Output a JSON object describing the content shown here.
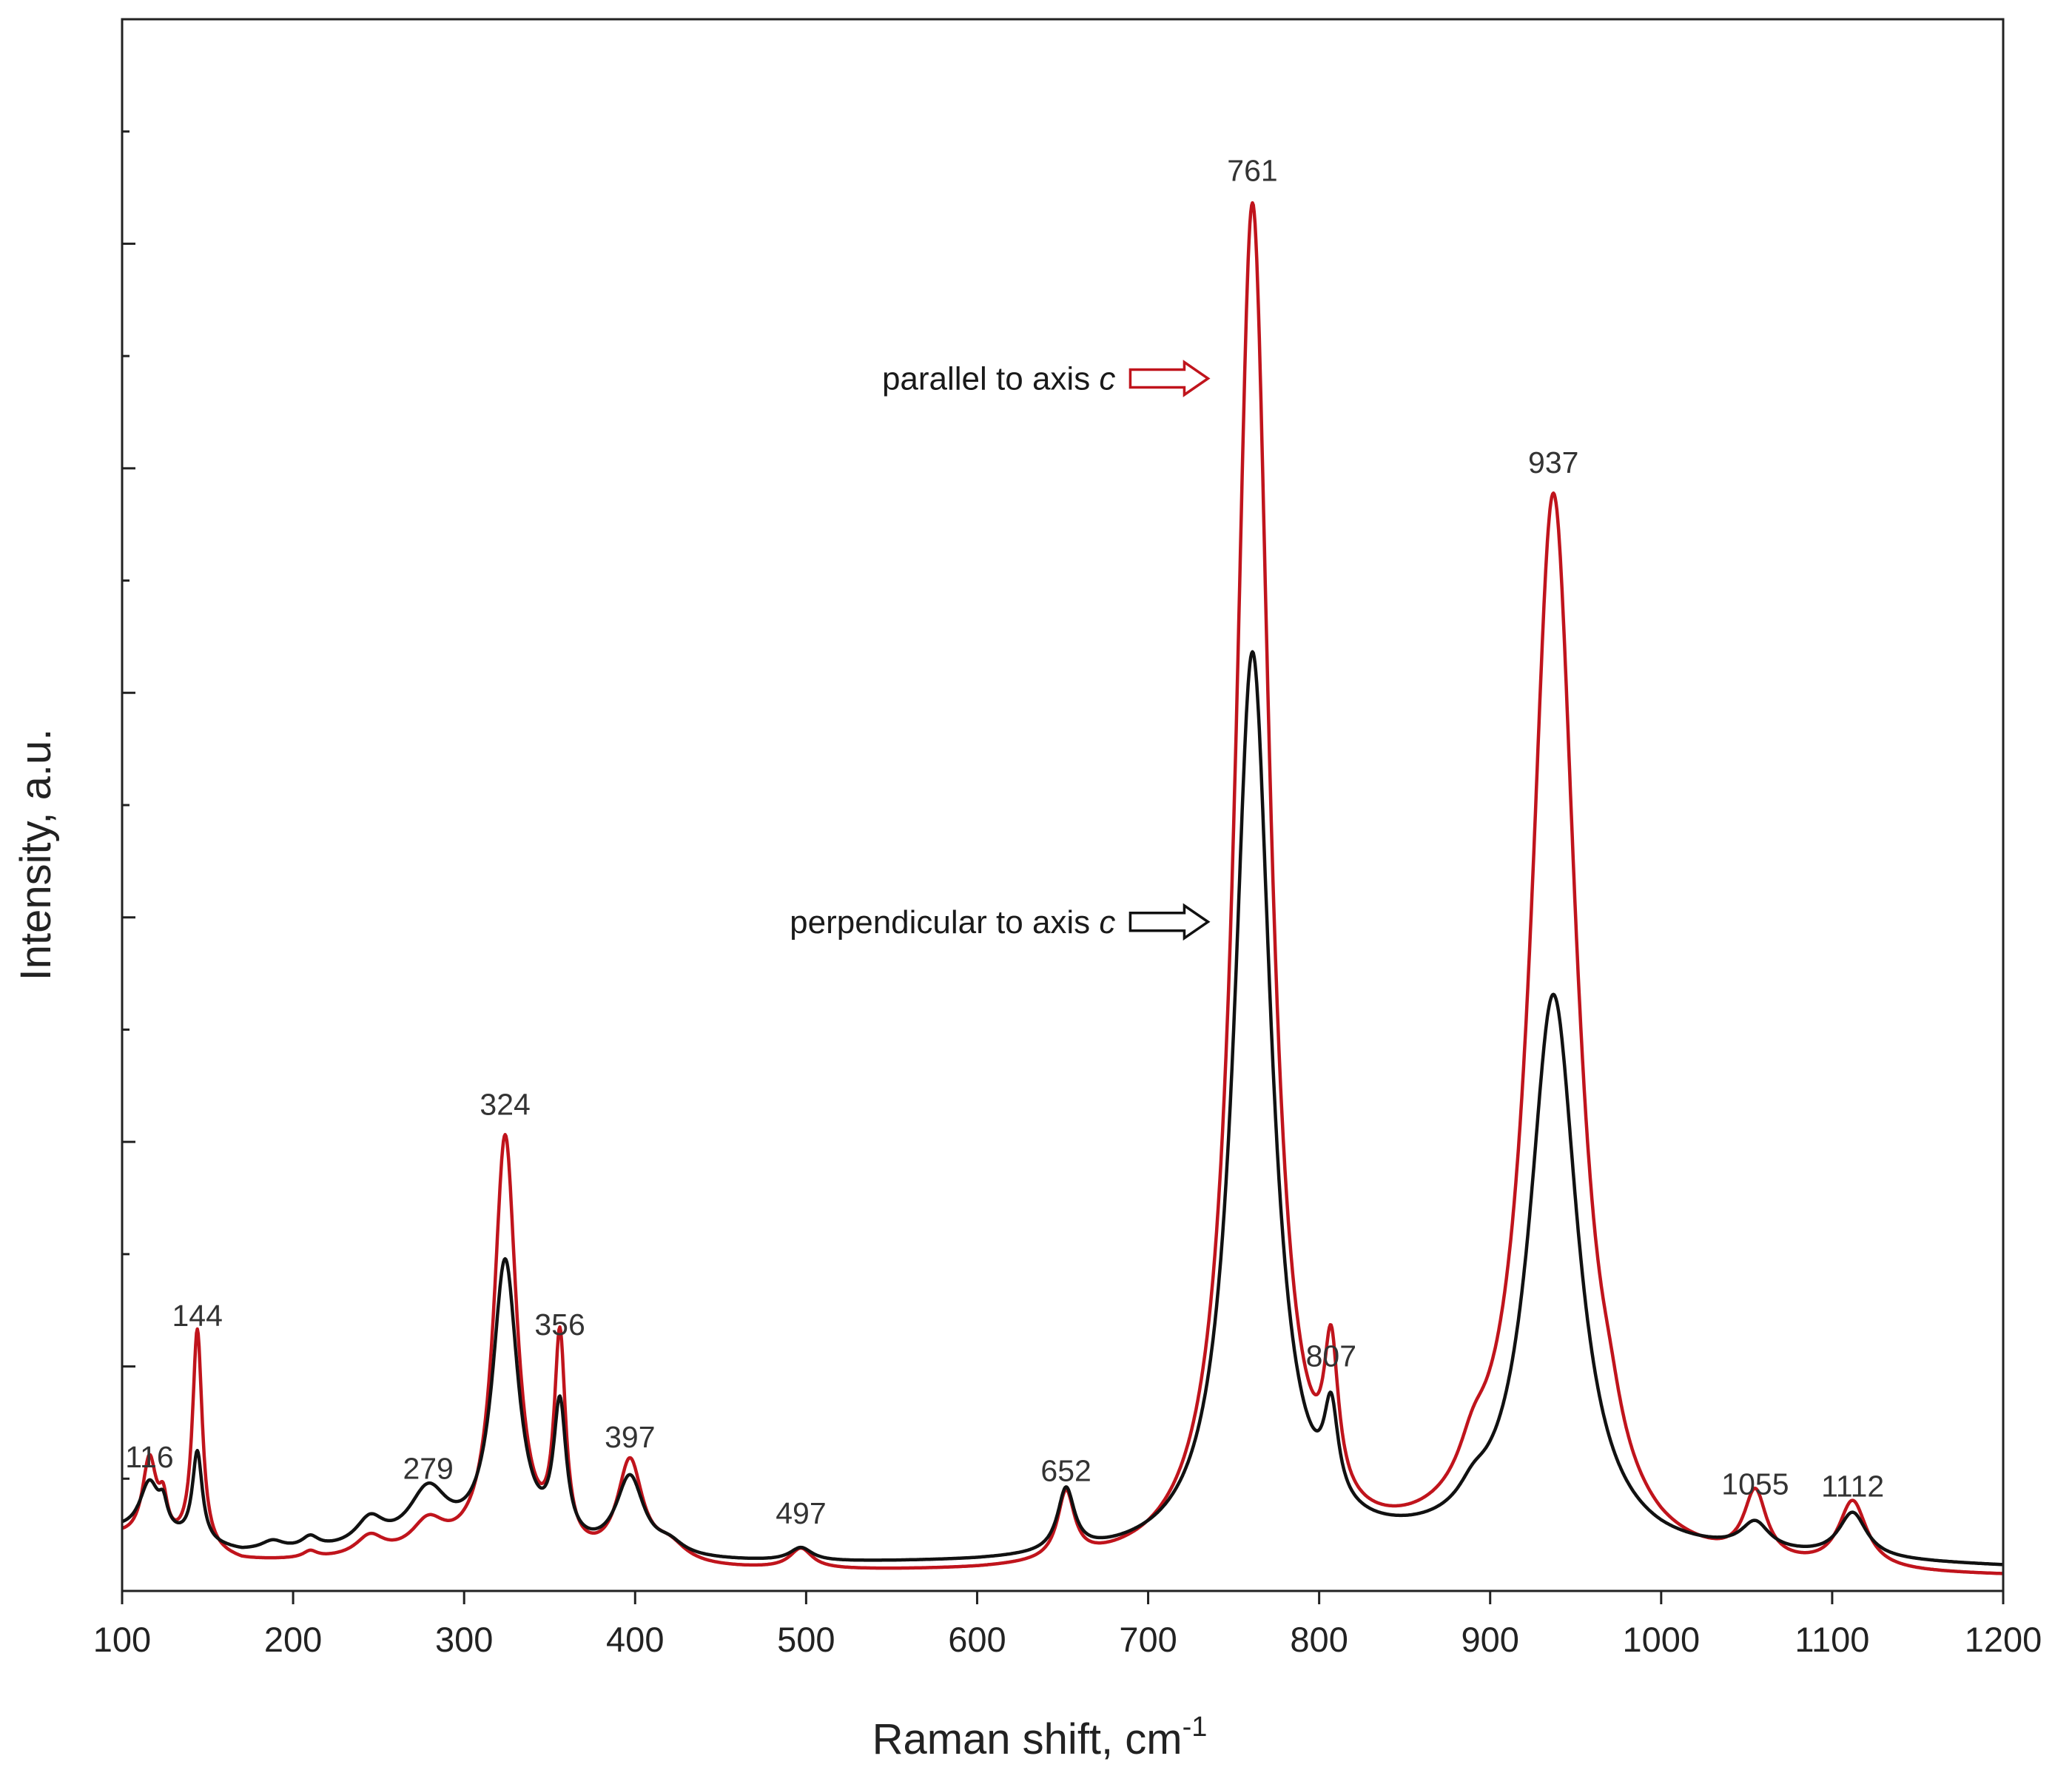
{
  "chart_data": {
    "type": "line",
    "title": "",
    "xlabel": "Raman shift, cm",
    "xlabel_superscript": "-1",
    "ylabel": "Intensity, a.u.",
    "xlim": [
      100,
      1200
    ],
    "ylim": [
      0,
      7
    ],
    "xticks": [
      100,
      200,
      300,
      400,
      500,
      600,
      700,
      800,
      900,
      1000,
      1100,
      1200
    ],
    "yticks_major": [
      1,
      2,
      3,
      4,
      5,
      6
    ],
    "yticks_minor": [
      0.5,
      1.5,
      2.5,
      3.5,
      4.5,
      5.5,
      6.5
    ],
    "grid": false,
    "series": [
      {
        "name": "parallel to axis c",
        "legend_text": "parallel to axis ",
        "axis_symbol": "c",
        "color": "#c0141c",
        "baseline": [
          [
            100,
            0.23
          ],
          [
            170,
            0.12
          ],
          [
            300,
            0.12
          ],
          [
            400,
            0.08
          ],
          [
            500,
            0.07
          ],
          [
            600,
            0.06
          ],
          [
            700,
            0.06
          ],
          [
            800,
            0.08
          ],
          [
            900,
            0.12
          ],
          [
            1000,
            0.05
          ],
          [
            1050,
            0.05
          ],
          [
            1200,
            0.05
          ]
        ],
        "peaks": [
          {
            "x": 116,
            "h": 0.36,
            "w": 5
          },
          {
            "x": 124,
            "h": 0.15,
            "w": 3
          },
          {
            "x": 144,
            "h": 0.98,
            "w": 3.5
          },
          {
            "x": 210,
            "h": 0.03,
            "w": 5
          },
          {
            "x": 245,
            "h": 0.09,
            "w": 10
          },
          {
            "x": 279,
            "h": 0.14,
            "w": 12
          },
          {
            "x": 324,
            "h": 1.88,
            "w": 8
          },
          {
            "x": 356,
            "h": 0.93,
            "w": 4
          },
          {
            "x": 397,
            "h": 0.45,
            "w": 9
          },
          {
            "x": 420,
            "h": 0.08,
            "w": 12
          },
          {
            "x": 497,
            "h": 0.09,
            "w": 8
          },
          {
            "x": 652,
            "h": 0.3,
            "w": 6
          },
          {
            "x": 761,
            "h": 6.06,
            "w": 12
          },
          {
            "x": 807,
            "h": 0.64,
            "w": 5
          },
          {
            "x": 890,
            "h": 0.15,
            "w": 10
          },
          {
            "x": 937,
            "h": 4.75,
            "w": 16
          },
          {
            "x": 970,
            "h": 0.12,
            "w": 8
          },
          {
            "x": 1055,
            "h": 0.3,
            "w": 8
          },
          {
            "x": 1112,
            "h": 0.3,
            "w": 10
          }
        ]
      },
      {
        "name": "perpendicular to axis c",
        "legend_text": "perpendicular to axis ",
        "axis_symbol": "c",
        "color": "#111111",
        "baseline": [
          [
            100,
            0.26
          ],
          [
            170,
            0.16
          ],
          [
            300,
            0.16
          ],
          [
            400,
            0.12
          ],
          [
            500,
            0.11
          ],
          [
            600,
            0.11
          ],
          [
            700,
            0.12
          ],
          [
            800,
            0.14
          ],
          [
            900,
            0.16
          ],
          [
            1000,
            0.13
          ],
          [
            1050,
            0.13
          ],
          [
            1200,
            0.1
          ]
        ],
        "peaks": [
          {
            "x": 116,
            "h": 0.23,
            "w": 7
          },
          {
            "x": 124,
            "h": 0.1,
            "w": 3
          },
          {
            "x": 144,
            "h": 0.4,
            "w": 3.5
          },
          {
            "x": 188,
            "h": 0.04,
            "w": 8
          },
          {
            "x": 210,
            "h": 0.05,
            "w": 6
          },
          {
            "x": 245,
            "h": 0.12,
            "w": 10
          },
          {
            "x": 279,
            "h": 0.25,
            "w": 14
          },
          {
            "x": 324,
            "h": 1.28,
            "w": 9
          },
          {
            "x": 356,
            "h": 0.6,
            "w": 4.5
          },
          {
            "x": 397,
            "h": 0.35,
            "w": 10
          },
          {
            "x": 420,
            "h": 0.05,
            "w": 10
          },
          {
            "x": 497,
            "h": 0.06,
            "w": 8
          },
          {
            "x": 652,
            "h": 0.28,
            "w": 6
          },
          {
            "x": 761,
            "h": 4.02,
            "w": 13
          },
          {
            "x": 807,
            "h": 0.4,
            "w": 5
          },
          {
            "x": 890,
            "h": 0.08,
            "w": 10
          },
          {
            "x": 937,
            "h": 2.48,
            "w": 17
          },
          {
            "x": 1055,
            "h": 0.12,
            "w": 10
          },
          {
            "x": 1112,
            "h": 0.2,
            "w": 10
          }
        ]
      }
    ],
    "annotations": [
      {
        "text": "116",
        "x": 116,
        "y": 0.55
      },
      {
        "text": "144",
        "x": 144,
        "y": 1.18
      },
      {
        "text": "279",
        "x": 279,
        "y": 0.5
      },
      {
        "text": "324",
        "x": 324,
        "y": 2.12
      },
      {
        "text": "356",
        "x": 356,
        "y": 1.14
      },
      {
        "text": "397",
        "x": 397,
        "y": 0.64
      },
      {
        "text": "497",
        "x": 497,
        "y": 0.3
      },
      {
        "text": "652",
        "x": 652,
        "y": 0.49
      },
      {
        "text": "761",
        "x": 761,
        "y": 6.28
      },
      {
        "text": "807",
        "x": 807,
        "y": 1.0
      },
      {
        "text": "937",
        "x": 937,
        "y": 4.98
      },
      {
        "text": "1055",
        "x": 1055,
        "y": 0.43
      },
      {
        "text": "1112",
        "x": 1112,
        "y": 0.42
      }
    ],
    "legend_arrows": [
      {
        "series": 0,
        "x": 735,
        "y": 5.4
      },
      {
        "series": 1,
        "x": 735,
        "y": 2.98
      }
    ]
  }
}
